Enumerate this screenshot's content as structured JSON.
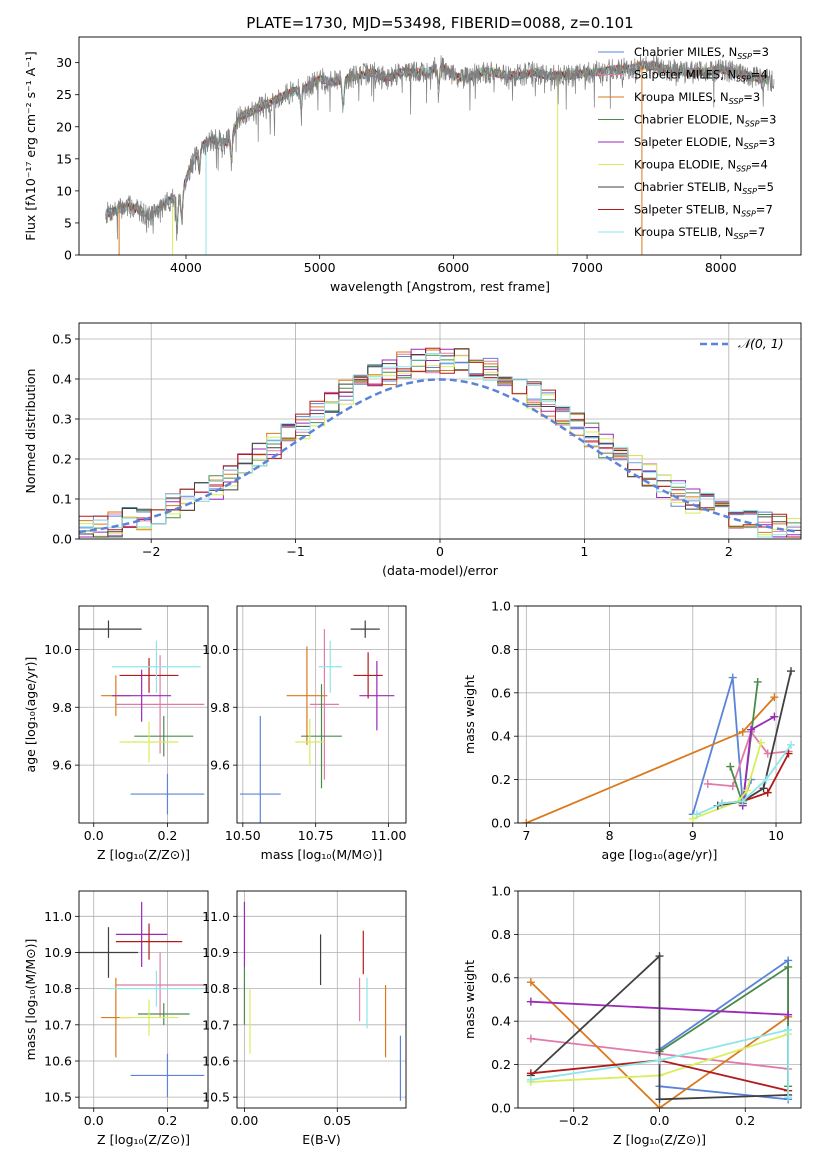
{
  "figure_title": "PLATE=1730, MJD=53498, FIBERID=0088, z=0.101",
  "colors": {
    "grid": "#b0b0b0",
    "axes": "#000000"
  },
  "model_series": [
    {
      "name": "Chabrier MILES",
      "nssp": "3",
      "color": "#5b84d9"
    },
    {
      "name": "Salpeter MILES",
      "nssp": "4",
      "color": "#e07ba8"
    },
    {
      "name": "Kroupa MILES",
      "nssp": "3",
      "color": "#d97a1c"
    },
    {
      "name": "Chabrier ELODIE",
      "nssp": "3",
      "color": "#4c8a4c"
    },
    {
      "name": "Salpeter ELODIE",
      "nssp": "3",
      "color": "#9b2aba"
    },
    {
      "name": "Kroupa ELODIE",
      "nssp": "4",
      "color": "#d8ee5a"
    },
    {
      "name": "Chabrier STELIB",
      "nssp": "5",
      "color": "#404040"
    },
    {
      "name": "Salpeter STELIB",
      "nssp": "7",
      "color": "#b31b1b"
    },
    {
      "name": "Kroupa STELIB",
      "nssp": "7",
      "color": "#8ee6ea"
    }
  ],
  "chart_data": [
    {
      "id": "spectrum",
      "type": "line",
      "xlabel": "wavelength [Angstrom, rest frame]",
      "ylabel": "Flux [fλ10⁻¹⁷ erg cm⁻² s⁻¹ A⁻¹]",
      "xlim": [
        3200,
        8600
      ],
      "ylim": [
        0,
        34
      ],
      "xticks": [
        "4000",
        "5000",
        "6000",
        "7000",
        "8000"
      ],
      "yticks": [
        "0",
        "5",
        "10",
        "15",
        "20",
        "25",
        "30"
      ],
      "grid": false,
      "legend": "top-right",
      "data_color": "#808080",
      "x": [
        3400,
        3480,
        3560,
        3640,
        3720,
        3800,
        3880,
        3960,
        4040,
        4120,
        4200,
        4300,
        4400,
        4500,
        4600,
        4700,
        4800,
        4900,
        5000,
        5100,
        5200,
        5300,
        5400,
        5500,
        5600,
        5700,
        5800,
        5900,
        6000,
        6100,
        6200,
        6300,
        6400,
        6500,
        6600,
        6700,
        6800,
        6900,
        7000,
        7100,
        7200,
        7300,
        7400,
        7500,
        7600,
        7700,
        7800,
        7900,
        8000,
        8100,
        8200,
        8300,
        8400
      ],
      "y": [
        6.5,
        7.0,
        7.6,
        7.2,
        6.0,
        7.2,
        8.5,
        9.5,
        14.0,
        17.0,
        18.0,
        17.5,
        21.5,
        22.5,
        23.5,
        24.5,
        25.5,
        26.0,
        27.5,
        27.0,
        27.5,
        28.0,
        28.5,
        27.5,
        28.5,
        28.5,
        28.5,
        29.5,
        28.0,
        27.5,
        28.5,
        28.5,
        28.0,
        28.0,
        28.5,
        28.0,
        28.0,
        28.0,
        28.5,
        28.5,
        29.0,
        29.0,
        29.5,
        29.5,
        29.0,
        28.5,
        28.5,
        28.5,
        29.0,
        28.5,
        28.0,
        27.5,
        27.0
      ]
    },
    {
      "id": "residual-histogram",
      "type": "step",
      "xlabel": "(data-model)/error",
      "ylabel": "Normed distribution",
      "xlim": [
        -2.5,
        2.5
      ],
      "ylim": [
        0,
        0.54
      ],
      "xticks": [
        "−2",
        "−1",
        "0",
        "1",
        "2"
      ],
      "yticks": [
        "0.0",
        "0.1",
        "0.2",
        "0.3",
        "0.4",
        "0.5"
      ],
      "grid": true,
      "legend": "top-right",
      "reference_curve": {
        "name": "𝒩(0, 1)",
        "mean": 0,
        "sigma": 1,
        "color": "#5b84d9"
      },
      "bin_width": 0.1
    },
    {
      "id": "age-vs-metallicity",
      "type": "errorbar",
      "xlabel": "Z [log₁₀(Z/Z⊙)]",
      "ylabel": "age  [log₁₀(age/yr)]",
      "xlim": [
        -0.04,
        0.31
      ],
      "ylim": [
        9.4,
        10.15
      ],
      "xticks": [
        "0.0",
        "0.2"
      ],
      "yticks": [
        "9.6",
        "9.8",
        "10.0"
      ],
      "grid": true,
      "points": [
        {
          "x": 0.2,
          "y": 9.5,
          "xerr": 0.1,
          "yerr": 0.07,
          "x2": 0.23
        },
        {
          "x": 0.18,
          "y": 9.81,
          "xerr": 0.12,
          "yerr": 0.17
        },
        {
          "x": 0.06,
          "y": 9.84,
          "xerr": 0.04,
          "yerr": 0.07
        },
        {
          "x": 0.19,
          "y": 9.7,
          "xerr": 0.08,
          "yerr": 0.07
        },
        {
          "x": 0.13,
          "y": 9.84,
          "xerr": 0.08,
          "yerr": 0.09
        },
        {
          "x": 0.15,
          "y": 9.68,
          "xerr": 0.08,
          "yerr": 0.07
        },
        {
          "x": 0.04,
          "y": 10.07,
          "xerr": 0.09,
          "yerr": 0.03
        },
        {
          "x": 0.15,
          "y": 9.91,
          "xerr": 0.08,
          "yerr": 0.06
        },
        {
          "x": 0.17,
          "y": 9.94,
          "xerr": 0.12,
          "yerr": 0.09
        }
      ]
    },
    {
      "id": "age-vs-mass",
      "type": "errorbar",
      "xlabel": "mass [log₁₀(M/M⊙)]",
      "xlim": [
        10.48,
        11.06
      ],
      "ylim": [
        9.4,
        10.15
      ],
      "xticks": [
        "10.50",
        "10.75",
        "11.00"
      ],
      "yticks": [
        "9.6",
        "9.8",
        "10.0"
      ],
      "grid": true,
      "points": [
        {
          "x": 10.56,
          "y": 9.5,
          "xerr": 0.07,
          "yerr": 0.27
        },
        {
          "x": 10.78,
          "y": 9.81,
          "xerr": 0.05,
          "yerr": 0.26
        },
        {
          "x": 10.72,
          "y": 9.84,
          "xerr": 0.07,
          "yerr": 0.17
        },
        {
          "x": 10.77,
          "y": 9.7,
          "xerr": 0.07,
          "yerr": 0.18
        },
        {
          "x": 10.96,
          "y": 9.84,
          "xerr": 0.06,
          "yerr": 0.12
        },
        {
          "x": 10.73,
          "y": 9.68,
          "xerr": 0.05,
          "yerr": 0.08
        },
        {
          "x": 10.92,
          "y": 10.07,
          "xerr": 0.05,
          "yerr": 0.03
        },
        {
          "x": 10.93,
          "y": 9.91,
          "xerr": 0.05,
          "yerr": 0.08
        },
        {
          "x": 10.8,
          "y": 9.94,
          "xerr": 0.04,
          "yerr": 0.09
        }
      ]
    },
    {
      "id": "mass-weight-vs-age",
      "type": "line",
      "xlabel": "age  [log₁₀(age/yr)]",
      "ylabel": "mass weight",
      "xlim": [
        6.9,
        10.3
      ],
      "ylim": [
        0,
        1
      ],
      "xticks": [
        "7",
        "8",
        "9",
        "10"
      ],
      "yticks": [
        "0.0",
        "0.2",
        "0.4",
        "0.6",
        "0.8",
        "1.0"
      ],
      "grid": true,
      "series": [
        {
          "x": [
            9.0,
            9.48,
            9.6,
            9.7
          ],
          "y": [
            0.04,
            0.67,
            0.09,
            0.2
          ]
        },
        {
          "x": [
            9.18,
            9.48,
            9.7,
            9.9,
            10.15
          ],
          "y": [
            0.18,
            0.17,
            0.42,
            0.32,
            0.33
          ]
        },
        {
          "x": [
            7.0,
            9.6,
            9.98
          ],
          "y": [
            0.0,
            0.42,
            0.58
          ]
        },
        {
          "x": [
            9.45,
            9.6,
            9.78
          ],
          "y": [
            0.26,
            0.09,
            0.65
          ]
        },
        {
          "x": [
            9.6,
            9.7,
            9.98
          ],
          "y": [
            0.08,
            0.43,
            0.49
          ]
        },
        {
          "x": [
            9.0,
            9.55,
            9.65,
            9.82
          ],
          "y": [
            0.02,
            0.1,
            0.15,
            0.37
          ]
        },
        {
          "x": [
            9.3,
            9.6,
            9.85,
            10.18
          ],
          "y": [
            0.08,
            0.1,
            0.16,
            0.7
          ]
        },
        {
          "x": [
            9.35,
            9.6,
            9.9,
            10.15
          ],
          "y": [
            0.09,
            0.1,
            0.14,
            0.32
          ]
        },
        {
          "x": [
            9.05,
            9.35,
            9.6,
            9.88,
            10.18
          ],
          "y": [
            0.04,
            0.09,
            0.1,
            0.2,
            0.36
          ]
        }
      ]
    },
    {
      "id": "mass-vs-metallicity",
      "type": "errorbar",
      "xlabel": "Z [log₁₀(Z/Z⊙)]",
      "ylabel": "mass [log₁₀(M/M⊙)]",
      "xlim": [
        -0.04,
        0.31
      ],
      "ylim": [
        10.47,
        11.07
      ],
      "xticks": [
        "0.0",
        "0.2"
      ],
      "yticks": [
        "10.5",
        "10.6",
        "10.7",
        "10.8",
        "10.9",
        "11.0"
      ],
      "grid": true,
      "points": [
        {
          "x": 0.2,
          "y": 10.56,
          "xerr": 0.1,
          "yerr": 0.06
        },
        {
          "x": 0.18,
          "y": 10.81,
          "xerr": 0.12,
          "yerr": 0.09
        },
        {
          "x": 0.06,
          "y": 10.72,
          "xerr": 0.04,
          "yerr": 0.11
        },
        {
          "x": 0.19,
          "y": 10.73,
          "xerr": 0.07,
          "yerr": 0.03
        },
        {
          "x": 0.13,
          "y": 10.95,
          "xerr": 0.07,
          "yerr": 0.09
        },
        {
          "x": 0.15,
          "y": 10.72,
          "xerr": 0.08,
          "yerr": 0.05
        },
        {
          "x": 0.04,
          "y": 10.9,
          "xerr": 0.08,
          "yerr": 0.07
        },
        {
          "x": 0.15,
          "y": 10.93,
          "xerr": 0.09,
          "yerr": 0.05
        },
        {
          "x": 0.17,
          "y": 10.8,
          "xerr": 0.13,
          "yerr": 0.05
        }
      ]
    },
    {
      "id": "mass-vs-extinction",
      "type": "errorbar",
      "xlabel": "E(B-V)",
      "xlim": [
        -0.004,
        0.087
      ],
      "ylim": [
        10.47,
        11.07
      ],
      "xticks": [
        "0.00",
        "0.05"
      ],
      "yticks": [
        "10.5",
        "10.6",
        "10.7",
        "10.8",
        "10.9",
        "11.0"
      ],
      "grid": true,
      "points": [
        {
          "x": 0.084,
          "y": 10.58,
          "xerr": 0,
          "yerr": 0.09
        },
        {
          "x": 0.062,
          "y": 10.77,
          "xerr": 0,
          "yerr": 0.06
        },
        {
          "x": 0.076,
          "y": 10.71,
          "xerr": 0,
          "yerr": 0.1
        },
        {
          "x": 0.0,
          "y": 10.78,
          "xerr": 0,
          "yerr": 0.08
        },
        {
          "x": 0.0,
          "y": 10.95,
          "xerr": 0,
          "yerr": 0.09
        },
        {
          "x": 0.003,
          "y": 10.71,
          "xerr": 0,
          "yerr": 0.09
        },
        {
          "x": 0.041,
          "y": 10.88,
          "xerr": 0,
          "yerr": 0.07
        },
        {
          "x": 0.064,
          "y": 10.9,
          "xerr": 0,
          "yerr": 0.06
        },
        {
          "x": 0.066,
          "y": 10.76,
          "xerr": 0,
          "yerr": 0.07
        }
      ]
    },
    {
      "id": "mass-weight-vs-metallicity",
      "type": "line",
      "xlabel": "Z [log₁₀(Z/Z⊙)]",
      "ylabel": "mass weight",
      "xlim": [
        -0.33,
        0.33
      ],
      "ylim": [
        0,
        1
      ],
      "xticks": [
        "−0.2",
        "0.0",
        "0.2"
      ],
      "yticks": [
        "0.0",
        "0.2",
        "0.4",
        "0.6",
        "0.8",
        "1.0"
      ],
      "grid": true,
      "series": [
        {
          "x": [
            0.0,
            0.3,
            0.3,
            0.0
          ],
          "y": [
            0.27,
            0.68,
            0.04,
            0.1
          ]
        },
        {
          "x": [
            -0.3,
            0.3
          ],
          "y": [
            0.32,
            0.18
          ]
        },
        {
          "x": [
            -0.3,
            0.0,
            0.3
          ],
          "y": [
            0.58,
            0.0,
            0.42
          ]
        },
        {
          "x": [
            0.0,
            0.3,
            0.3
          ],
          "y": [
            0.26,
            0.65,
            0.1
          ]
        },
        {
          "x": [
            -0.3,
            0.3
          ],
          "y": [
            0.49,
            0.43
          ]
        },
        {
          "x": [
            -0.3,
            0.0,
            0.3
          ],
          "y": [
            0.12,
            0.15,
            0.34
          ]
        },
        {
          "x": [
            -0.3,
            0.0,
            0.0,
            0.3
          ],
          "y": [
            0.15,
            0.7,
            0.04,
            0.06
          ]
        },
        {
          "x": [
            -0.3,
            0.0,
            0.3
          ],
          "y": [
            0.16,
            0.22,
            0.08
          ]
        },
        {
          "x": [
            -0.3,
            0.0,
            0.3,
            0.3
          ],
          "y": [
            0.13,
            0.22,
            0.36,
            0.05
          ]
        }
      ]
    }
  ]
}
